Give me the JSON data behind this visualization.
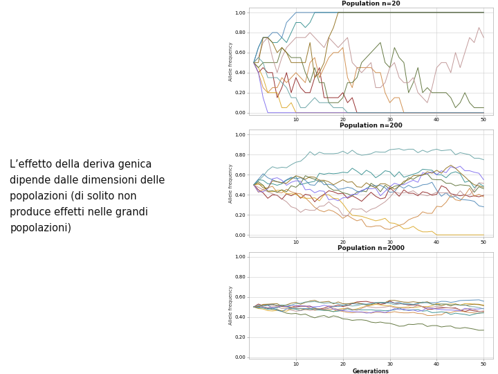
{
  "title1": "Population n=20",
  "title2": "Population n=200",
  "title3": "Population n=2000",
  "ylabel": "Allele frequency",
  "xlabel": "Generations",
  "text": "L’effetto della deriva genica\ndipende dalle dimensioni delle\npopolazioni (di solito non\nproduce effetti nelle grandi\npopolazioni)",
  "background": "#ffffff",
  "n_gen": 50,
  "n_lines": 10,
  "xticks": [
    10,
    20,
    30,
    40,
    50
  ],
  "yticks": [
    0.0,
    0.2,
    0.4,
    0.6,
    0.8,
    1.0
  ],
  "seed1": 12,
  "seed2": 34,
  "seed3": 56
}
